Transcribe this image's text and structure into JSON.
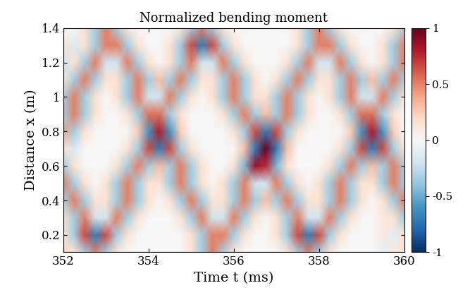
{
  "chart_data": {
    "type": "heatmap",
    "title": "Normalized bending moment",
    "x_label": "Time t (ms)",
    "y_label": "Distance x (m)",
    "color": "RdBu_r",
    "x": [
      352.0,
      352.25,
      352.5,
      352.75,
      353.0,
      353.25,
      353.5,
      353.75,
      354.0,
      354.25,
      354.5,
      354.75,
      355.0,
      355.25,
      355.5,
      355.75,
      356.0,
      356.25,
      356.5,
      356.75,
      357.0,
      357.25,
      357.5,
      357.75,
      358.0,
      358.25,
      358.5,
      358.75,
      359.0,
      359.25,
      359.5,
      359.75,
      360.0
    ],
    "y": [
      0.1,
      0.2,
      0.3,
      0.4,
      0.5,
      0.6,
      0.7,
      0.8,
      0.9,
      1.0,
      1.1,
      1.2,
      1.3,
      1.4
    ],
    "cells": [
      [
        0.2,
        0.15,
        -0.35,
        0.5,
        -0.35,
        0.15,
        0,
        0,
        0,
        0,
        0,
        0,
        0.15,
        -0.35,
        0.5,
        -0.35,
        0.15,
        0,
        0,
        0,
        0,
        0.15,
        -0.35,
        0.5,
        -0.35,
        0.15,
        0,
        0,
        0,
        0,
        -0.1,
        0.1,
        0.15
      ],
      [
        0.15,
        -0.35,
        0.65,
        -0.7,
        0.65,
        -0.35,
        0.15,
        0,
        0,
        0,
        0,
        0,
        0.15,
        -0.35,
        0.5,
        0.5,
        -0.35,
        0.15,
        0,
        0,
        0.15,
        -0.35,
        0.65,
        -0.7,
        0.65,
        -0.35,
        0.15,
        0,
        0,
        0,
        0.1,
        -0.1,
        0.15
      ],
      [
        0.15,
        -0.35,
        0.5,
        -0.2,
        -0.2,
        0.5,
        -0.35,
        0.15,
        0,
        0,
        0,
        0.15,
        -0.35,
        0.5,
        -0.2,
        -0.2,
        0.5,
        -0.35,
        0.15,
        0,
        0.15,
        -0.35,
        0.5,
        -0.2,
        -0.2,
        0.5,
        -0.35,
        0.15,
        0,
        0,
        0.1,
        0.15,
        -0.35
      ],
      [
        -0.35,
        0.5,
        -0.35,
        0.15,
        0.15,
        -0.35,
        0.5,
        -0.35,
        0.15,
        0,
        0.15,
        -0.35,
        0.5,
        -0.35,
        0.15,
        0.15,
        -0.35,
        0.5,
        -0.35,
        0.3,
        -0.35,
        0.5,
        -0.35,
        0.15,
        0.15,
        -0.35,
        0.5,
        -0.35,
        0.15,
        0,
        0.15,
        -0.35,
        0.5
      ],
      [
        0.5,
        -0.35,
        0.15,
        0,
        0.15,
        -0.35,
        0.5,
        -0.35,
        0.15,
        0.15,
        -0.35,
        0.5,
        -0.35,
        0.15,
        0,
        0.15,
        -0.35,
        0.5,
        -0.2,
        -0.2,
        0.5,
        -0.35,
        0.15,
        0,
        0.15,
        -0.35,
        0.5,
        -0.35,
        0.15,
        0.15,
        -0.35,
        0.5,
        -0.35
      ],
      [
        -0.35,
        0.15,
        0,
        0,
        0,
        0.15,
        -0.35,
        0.5,
        -0.35,
        0.3,
        -0.35,
        0.5,
        -0.35,
        0.15,
        0,
        0,
        0.15,
        -0.45,
        0.85,
        0.75,
        -0.45,
        0.15,
        0,
        0,
        0,
        0.15,
        -0.35,
        0.5,
        -0.35,
        0.3,
        -0.35,
        0.5,
        -0.35
      ],
      [
        0.15,
        -0.15,
        0,
        0,
        0,
        0,
        0.15,
        -0.35,
        0.65,
        -0.7,
        0.65,
        -0.35,
        0.15,
        0,
        0,
        0,
        0,
        0.3,
        -0.7,
        1.0,
        -0.7,
        0.3,
        0,
        0,
        0,
        0,
        0.15,
        -0.35,
        0.65,
        -0.7,
        0.65,
        -0.35,
        0.15
      ],
      [
        0.4,
        -0.35,
        0.15,
        0,
        0,
        0,
        0,
        0.25,
        -0.6,
        0.8,
        -0.6,
        0.25,
        0,
        0,
        0,
        0,
        0.15,
        -0.35,
        0.65,
        -0.7,
        0.65,
        -0.35,
        0.15,
        0,
        0,
        0,
        0,
        0.25,
        -0.6,
        0.8,
        -0.6,
        0.25,
        0
      ],
      [
        -0.35,
        0.5,
        -0.35,
        0.15,
        0,
        0,
        0.15,
        -0.35,
        0.55,
        0.55,
        -0.35,
        0.15,
        0,
        0,
        0,
        0.15,
        -0.35,
        0.5,
        -0.35,
        0.3,
        -0.35,
        0.5,
        -0.35,
        0.15,
        0,
        0,
        0.15,
        -0.35,
        0.55,
        0.55,
        -0.35,
        0.15,
        0
      ],
      [
        -0.35,
        0.5,
        -0.35,
        0.15,
        0,
        0.15,
        -0.35,
        0.5,
        -0.2,
        -0.2,
        0.5,
        -0.35,
        0.15,
        0,
        0.15,
        -0.35,
        0.5,
        -0.35,
        0.15,
        0.15,
        -0.35,
        0.5,
        -0.35,
        0.15,
        0,
        0.15,
        -0.35,
        0.5,
        -0.2,
        -0.2,
        0.5,
        -0.35,
        0.15
      ],
      [
        0.15,
        -0.35,
        0.5,
        -0.35,
        0.15,
        0.15,
        -0.35,
        0.5,
        -0.35,
        0.3,
        -0.35,
        0.5,
        -0.35,
        0.15,
        0.15,
        -0.35,
        0.5,
        -0.35,
        0.15,
        0,
        0.15,
        -0.35,
        0.5,
        -0.35,
        0.15,
        0.15,
        -0.35,
        0.5,
        -0.35,
        0.3,
        -0.35,
        0.5,
        -0.35
      ],
      [
        -0.2,
        0.15,
        -0.35,
        0.5,
        -0.2,
        -0.2,
        0.5,
        -0.35,
        0.15,
        0,
        0.15,
        -0.35,
        0.5,
        -0.2,
        -0.2,
        0.5,
        -0.35,
        0.15,
        0,
        0,
        0,
        0.15,
        -0.35,
        0.5,
        -0.2,
        -0.2,
        0.5,
        -0.35,
        0.15,
        0,
        0.15,
        -0.35,
        0.5
      ],
      [
        0.15,
        -0.15,
        0.15,
        -0.35,
        0.5,
        0.5,
        -0.35,
        0.15,
        0,
        0,
        0.15,
        -0.35,
        0.65,
        -0.7,
        0.65,
        -0.35,
        0.15,
        0,
        0,
        0,
        0,
        0,
        0.15,
        -0.35,
        0.5,
        0.5,
        -0.35,
        0.15,
        0,
        0,
        0.15,
        -0.35,
        0.5
      ],
      [
        0,
        0,
        0.15,
        -0.35,
        0.5,
        -0.35,
        0.15,
        0,
        0,
        0,
        0,
        0.15,
        -0.35,
        0.5,
        -0.35,
        0.15,
        0,
        0,
        0,
        0,
        0,
        0,
        0.15,
        -0.35,
        0.5,
        -0.35,
        0.15,
        0,
        0,
        0,
        0,
        0.15,
        -0.35
      ]
    ],
    "xlim": [
      352,
      360
    ],
    "xticks": [
      352,
      354,
      356,
      358,
      360
    ],
    "ylim": [
      0.1,
      1.4
    ],
    "yticks": [
      0.2,
      0.4,
      0.6,
      0.8,
      1,
      1.2,
      1.4
    ],
    "colorbar": {
      "range": [
        -1,
        1
      ],
      "ticks": [
        -1,
        -0.5,
        0,
        0.5,
        1
      ]
    }
  }
}
